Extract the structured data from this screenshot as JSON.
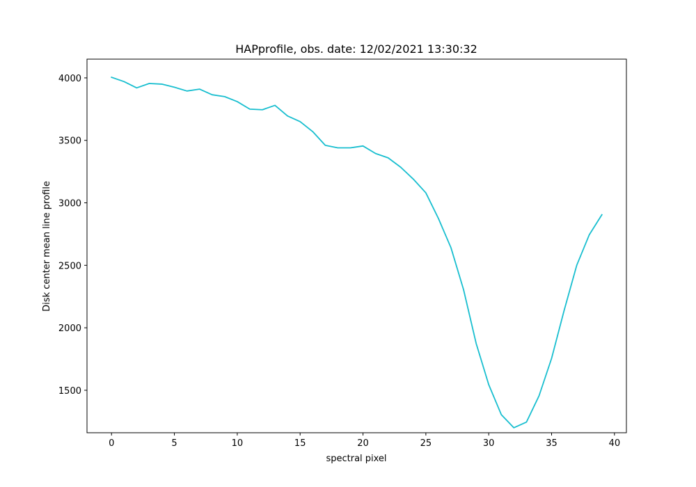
{
  "chart_data": {
    "type": "line",
    "title": "HAPprofile, obs. date: 12/02/2021 13:30:32",
    "xlabel": "spectral pixel",
    "ylabel": "Disk center mean line profile",
    "xlim": [
      -1.95,
      40.95
    ],
    "ylim": [
      1160,
      4150
    ],
    "x_ticks": [
      0,
      5,
      10,
      15,
      20,
      25,
      30,
      35,
      40
    ],
    "y_ticks": [
      1500,
      2000,
      2500,
      3000,
      3500,
      4000
    ],
    "grid": false,
    "legend": "none",
    "series": [
      {
        "color": "#17becf",
        "x": [
          0,
          1,
          2,
          3,
          4,
          5,
          6,
          7,
          8,
          9,
          10,
          11,
          12,
          13,
          14,
          15,
          16,
          17,
          18,
          19,
          20,
          21,
          22,
          23,
          24,
          25,
          26,
          27,
          28,
          29,
          30,
          31,
          32,
          33,
          34,
          35,
          36,
          37,
          38,
          39
        ],
        "values": [
          4005,
          3970,
          3920,
          3955,
          3950,
          3925,
          3895,
          3910,
          3865,
          3850,
          3810,
          3750,
          3745,
          3780,
          3695,
          3650,
          3570,
          3460,
          3440,
          3440,
          3455,
          3395,
          3360,
          3285,
          3190,
          3080,
          2875,
          2640,
          2305,
          1875,
          1545,
          1305,
          1200,
          1245,
          1455,
          1755,
          2140,
          2500,
          2745,
          2905
        ]
      }
    ]
  }
}
